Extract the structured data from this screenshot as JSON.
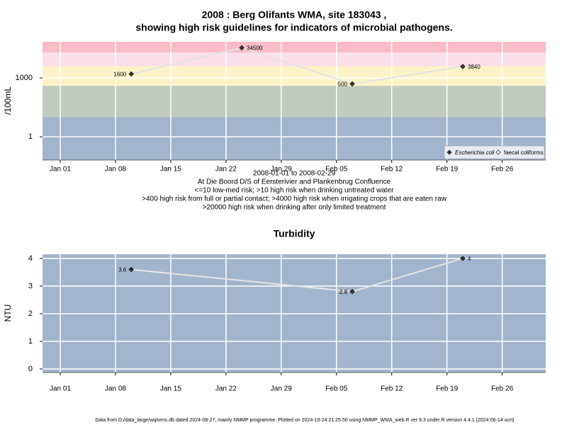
{
  "chart_data": [
    {
      "type": "line",
      "title": "2008 : Berg Olifants WMA, site 183043 ,",
      "subtitle": "showing high risk guidelines for indicators of microbial pathogens.",
      "y_label": "/100mL",
      "log_scale": true,
      "grid": true,
      "x": [
        "2008-01-10",
        "2008-01-24",
        "2008-02-07",
        "2008-02-21"
      ],
      "series": [
        {
          "name": "Escherichia coli",
          "color": "#333333",
          "values": [
            1600,
            34500,
            500,
            3840
          ]
        },
        {
          "name": "faecal coliforms",
          "color": "#333333",
          "values": [
            null,
            null,
            null,
            null
          ]
        }
      ],
      "xlim": [
        "2008-01-01",
        "2008-02-29"
      ],
      "xticks": [
        {
          "value": "2008-01-01",
          "label": "Jan 01"
        },
        {
          "value": "2008-01-08",
          "label": "Jan 08"
        },
        {
          "value": "2008-01-15",
          "label": "Jan 15"
        },
        {
          "value": "2008-01-22",
          "label": "Jan 22"
        },
        {
          "value": "2008-01-29",
          "label": "Jan 29"
        },
        {
          "value": "2008-02-05",
          "label": "Feb 05"
        },
        {
          "value": "2008-02-12",
          "label": "Feb 12"
        },
        {
          "value": "2008-02-19",
          "label": "Feb 19"
        },
        {
          "value": "2008-02-26",
          "label": "Feb 26"
        }
      ],
      "ylim": [
        0.065,
        70000
      ],
      "yticks": [
        1,
        1000
      ],
      "band_limits": [
        10,
        400,
        4000,
        20000
      ],
      "band_colors": [
        "#a3b5cc",
        "#c2cbbf",
        "#fcf4c8",
        "#fbdfeb",
        "#fbbcc7"
      ],
      "legend": "bottom-right",
      "notes": [
        "2008-01-01 to 2008-02-29",
        "At Die Boord D/S of Eersterivier and Plankenbrug Confluence",
        "<=10 low-med risk; >10 high risk when drinking untreated water",
        ">400 high risk from full or partial contact; >4000 high risk when irrigating crops that are eaten raw",
        ">20000 high risk when drinking after only limited treatment"
      ]
    },
    {
      "type": "line",
      "title": "Turbidity",
      "y_label": "NTU",
      "log_scale": false,
      "grid": true,
      "background": "#a3b5cc",
      "x": [
        "2008-01-10",
        "2008-02-07",
        "2008-02-21"
      ],
      "series": [
        {
          "name": "Turbidity",
          "color": "#333333",
          "values": [
            3.6,
            2.8,
            4
          ]
        }
      ],
      "xlim": [
        "2008-01-01",
        "2008-02-29"
      ],
      "xticks": [
        {
          "value": "2008-01-01",
          "label": "Jan 01"
        },
        {
          "value": "2008-01-08",
          "label": "Jan 08"
        },
        {
          "value": "2008-01-15",
          "label": "Jan 15"
        },
        {
          "value": "2008-01-22",
          "label": "Jan 22"
        },
        {
          "value": "2008-01-29",
          "label": "Jan 29"
        },
        {
          "value": "2008-02-05",
          "label": "Feb 05"
        },
        {
          "value": "2008-02-12",
          "label": "Feb 12"
        },
        {
          "value": "2008-02-19",
          "label": "Feb 19"
        },
        {
          "value": "2008-02-26",
          "label": "Feb 26"
        }
      ],
      "ylim": [
        -0.13,
        4.15
      ],
      "yticks": [
        0,
        1,
        2,
        3,
        4
      ]
    }
  ],
  "footer": "Data from D:/data_large/wq/wms.db dated 2024-08-27, mainly NMMP programme. Plotted on 2024-10-24 21:25:50 using NMMP_WMA_web.R ver 9.3 under R version 4.4.1 (2024-06-14 ucrt)"
}
